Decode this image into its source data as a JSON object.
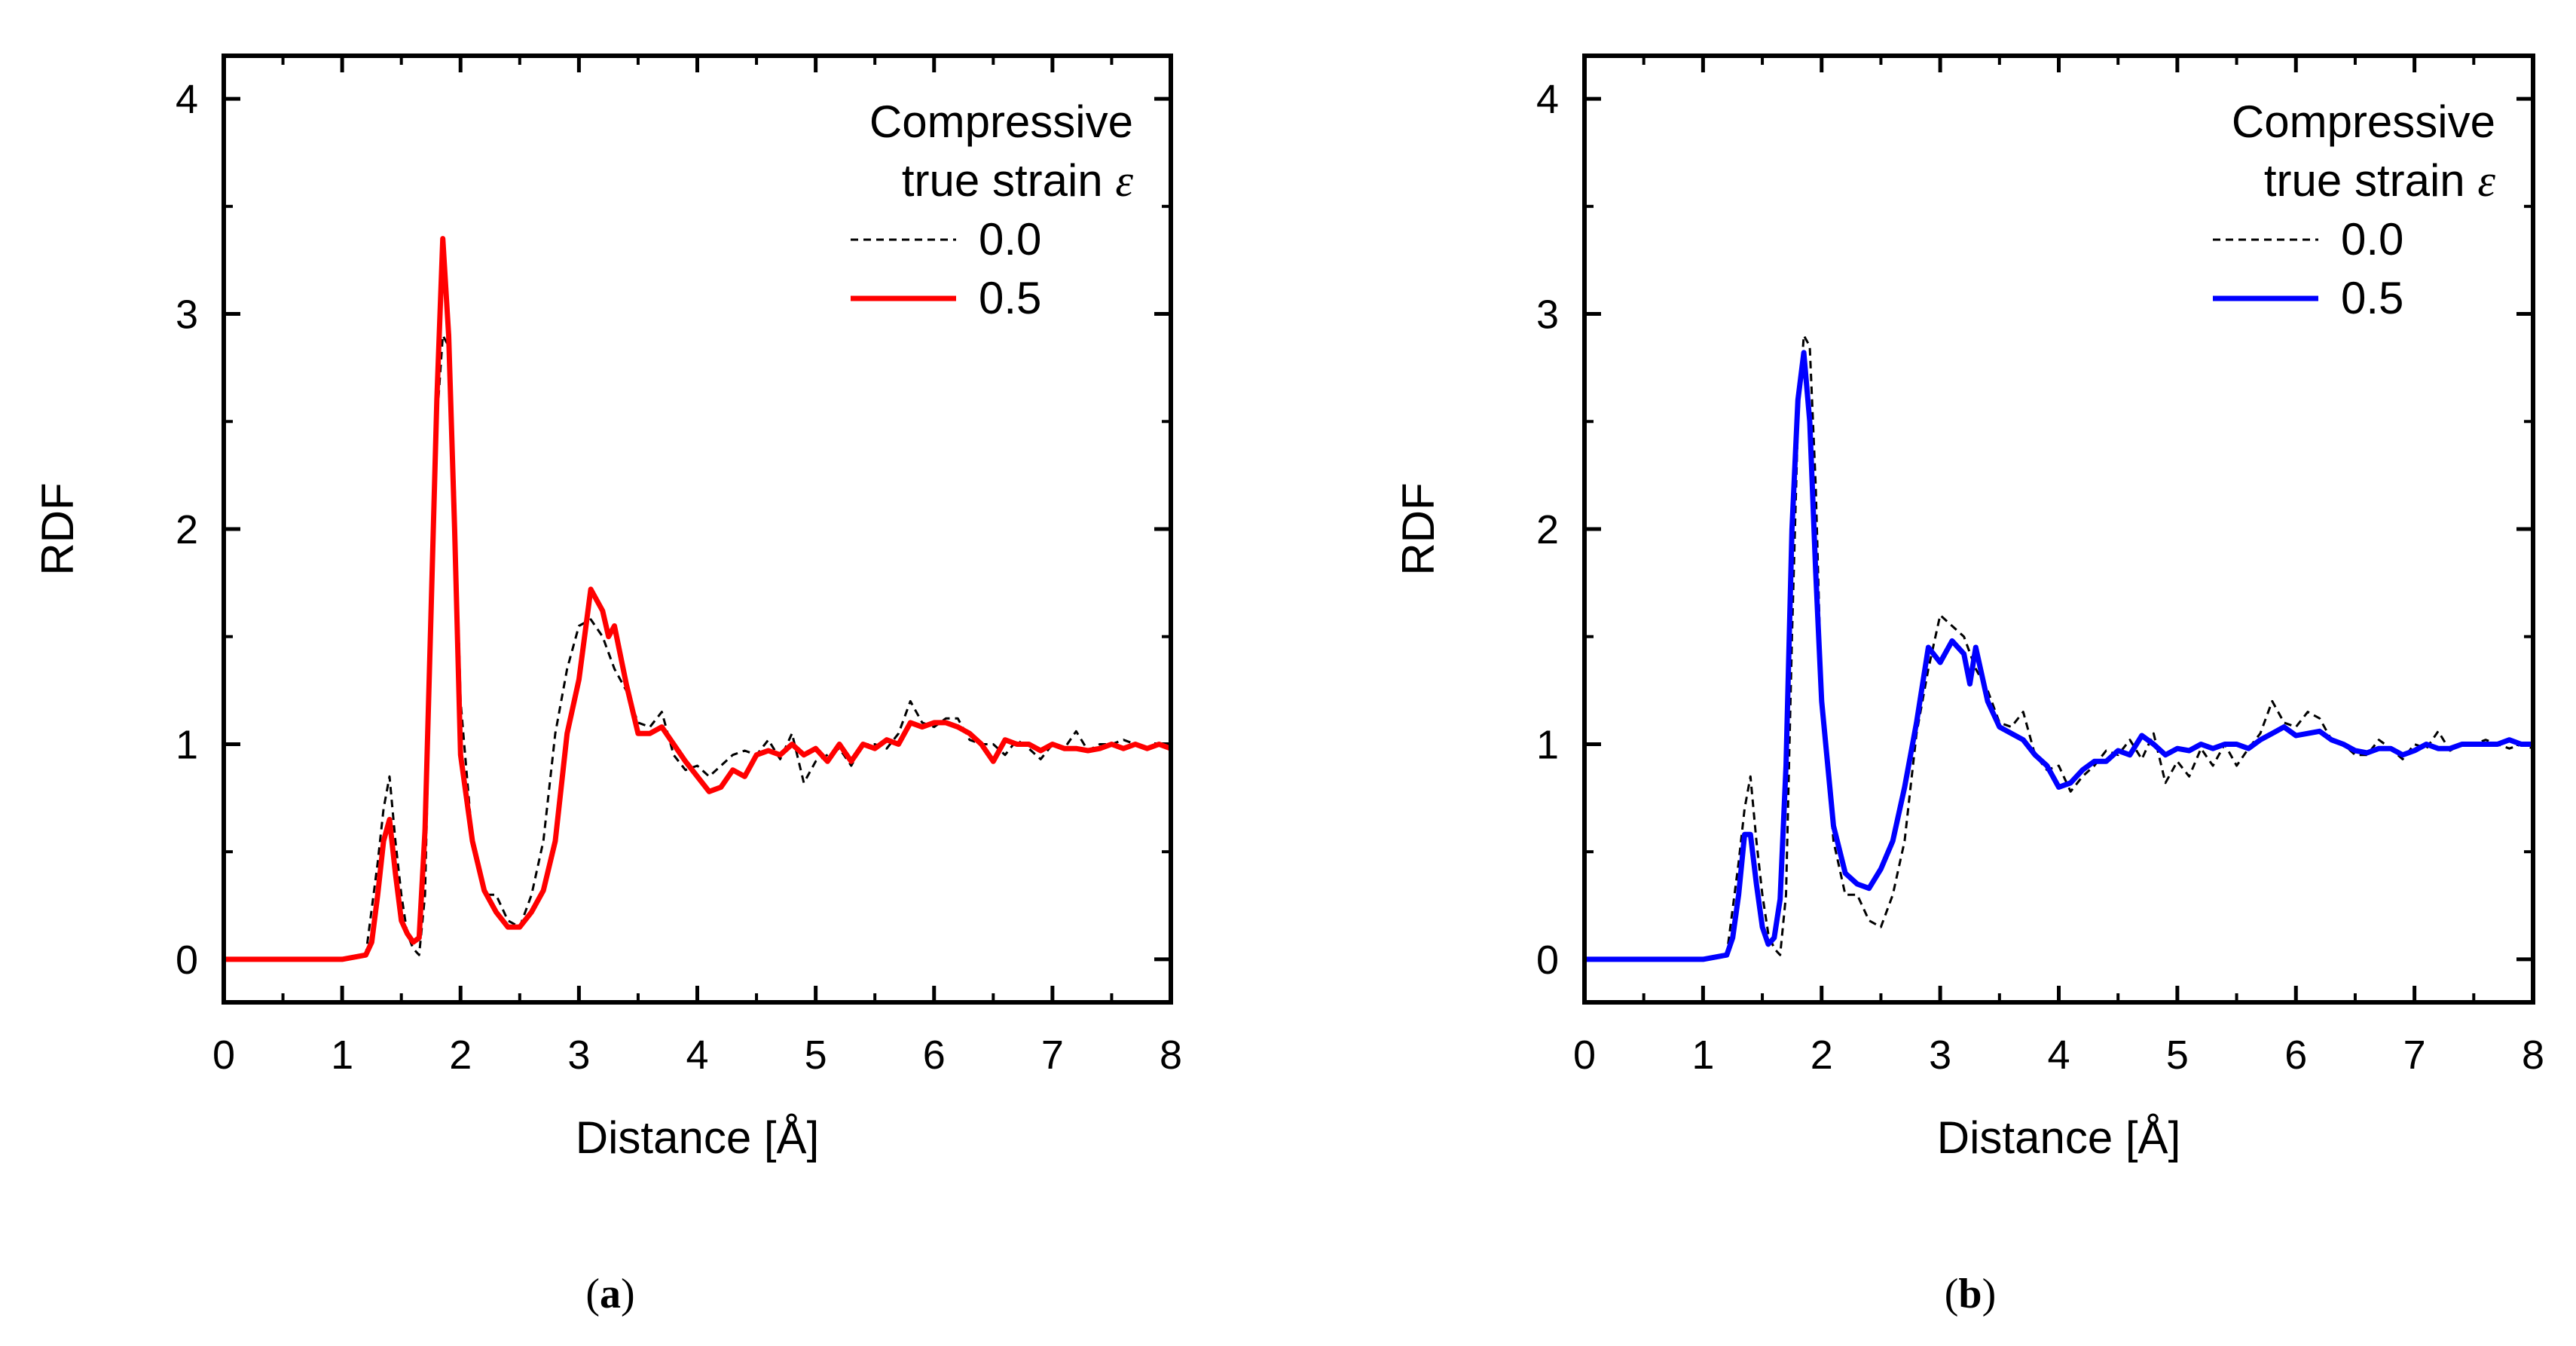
{
  "chart_data": [
    {
      "type": "line",
      "panel_caption": "a",
      "xlabel": "Distance [Å]",
      "ylabel": "RDF",
      "xlim": [
        0,
        8
      ],
      "ylim": [
        -0.2,
        4.2
      ],
      "xticks": [
        0,
        1,
        2,
        3,
        4,
        5,
        6,
        7,
        8
      ],
      "yticks": [
        0,
        1,
        2,
        3,
        4
      ],
      "legend": {
        "title_line1": "Compressive",
        "title_line2": "true strain",
        "title_symbol": "ε",
        "position": "top-right"
      },
      "series": [
        {
          "name": "0.0",
          "color": "#000000",
          "style": "dashed",
          "x": [
            0,
            0.2,
            1.0,
            1.2,
            1.3,
            1.35,
            1.4,
            1.45,
            1.5,
            1.55,
            1.6,
            1.65,
            1.7,
            1.75,
            1.8,
            1.85,
            1.9,
            1.95,
            2.0,
            2.1,
            2.2,
            2.3,
            2.4,
            2.5,
            2.6,
            2.7,
            2.8,
            2.9,
            3.0,
            3.1,
            3.2,
            3.3,
            3.4,
            3.5,
            3.6,
            3.7,
            3.8,
            3.9,
            4.0,
            4.1,
            4.2,
            4.3,
            4.4,
            4.5,
            4.6,
            4.7,
            4.8,
            4.9,
            5.0,
            5.1,
            5.2,
            5.3,
            5.4,
            5.5,
            5.6,
            5.7,
            5.8,
            5.9,
            6.0,
            6.1,
            6.2,
            6.3,
            6.4,
            6.5,
            6.6,
            6.7,
            6.8,
            6.9,
            7.0,
            7.1,
            7.2,
            7.3,
            7.4,
            7.5,
            7.6,
            7.7,
            7.8,
            7.9,
            8.0
          ],
          "y": [
            0,
            0,
            0,
            0.02,
            0.45,
            0.7,
            0.85,
            0.55,
            0.3,
            0.12,
            0.05,
            0.02,
            0.3,
            1.5,
            2.5,
            2.9,
            2.85,
            2.2,
            1.2,
            0.55,
            0.3,
            0.3,
            0.18,
            0.15,
            0.3,
            0.55,
            1.05,
            1.35,
            1.55,
            1.58,
            1.5,
            1.35,
            1.25,
            1.1,
            1.08,
            1.15,
            0.95,
            0.88,
            0.9,
            0.85,
            0.9,
            0.95,
            0.97,
            0.95,
            1.02,
            0.93,
            1.05,
            0.82,
            0.92,
            0.95,
            0.98,
            0.9,
            1.0,
            1.0,
            0.98,
            1.05,
            1.2,
            1.1,
            1.08,
            1.12,
            1.12,
            1.02,
            1.0,
            1.0,
            0.95,
            1.02,
            0.98,
            0.93,
            1.0,
            0.98,
            1.06,
            0.97,
            1.0,
            1.0,
            1.02,
            1.0,
            0.98,
            1.0,
            0.98
          ]
        },
        {
          "name": "0.5",
          "color": "#ff0000",
          "style": "solid",
          "x": [
            0,
            0.2,
            1.0,
            1.2,
            1.25,
            1.3,
            1.35,
            1.4,
            1.45,
            1.5,
            1.55,
            1.6,
            1.65,
            1.7,
            1.75,
            1.8,
            1.85,
            1.9,
            1.95,
            2.0,
            2.1,
            2.2,
            2.3,
            2.4,
            2.5,
            2.6,
            2.7,
            2.8,
            2.9,
            3.0,
            3.1,
            3.2,
            3.25,
            3.3,
            3.4,
            3.5,
            3.6,
            3.7,
            3.8,
            3.9,
            4.0,
            4.1,
            4.2,
            4.3,
            4.4,
            4.5,
            4.6,
            4.7,
            4.8,
            4.9,
            5.0,
            5.1,
            5.2,
            5.3,
            5.4,
            5.5,
            5.6,
            5.7,
            5.8,
            5.9,
            6.0,
            6.1,
            6.2,
            6.3,
            6.4,
            6.5,
            6.6,
            6.7,
            6.8,
            6.9,
            7.0,
            7.1,
            7.2,
            7.3,
            7.4,
            7.5,
            7.6,
            7.7,
            7.8,
            7.9,
            8.0
          ],
          "y": [
            0,
            0,
            0,
            0.02,
            0.08,
            0.3,
            0.55,
            0.65,
            0.4,
            0.18,
            0.12,
            0.08,
            0.1,
            0.6,
            1.6,
            2.6,
            3.35,
            2.9,
            2.0,
            0.95,
            0.55,
            0.32,
            0.22,
            0.15,
            0.15,
            0.22,
            0.32,
            0.55,
            1.05,
            1.3,
            1.72,
            1.62,
            1.5,
            1.55,
            1.28,
            1.05,
            1.05,
            1.08,
            1.0,
            0.92,
            0.85,
            0.78,
            0.8,
            0.88,
            0.85,
            0.95,
            0.97,
            0.95,
            1.0,
            0.95,
            0.98,
            0.92,
            1.0,
            0.92,
            1.0,
            0.98,
            1.02,
            1.0,
            1.1,
            1.08,
            1.1,
            1.1,
            1.08,
            1.05,
            1.0,
            0.92,
            1.02,
            1.0,
            1.0,
            0.97,
            1.0,
            0.98,
            0.98,
            0.97,
            0.98,
            1.0,
            0.98,
            1.0,
            0.98,
            1.0,
            0.98
          ]
        }
      ]
    },
    {
      "type": "line",
      "panel_caption": "b",
      "xlabel": "Distance [Å]",
      "ylabel": "RDF",
      "xlim": [
        0,
        8
      ],
      "ylim": [
        -0.2,
        4.2
      ],
      "xticks": [
        0,
        1,
        2,
        3,
        4,
        5,
        6,
        7,
        8
      ],
      "yticks": [
        0,
        1,
        2,
        3,
        4
      ],
      "legend": {
        "title_line1": "Compressive",
        "title_line2": "true strain",
        "title_symbol": "ε",
        "position": "top-right"
      },
      "series": [
        {
          "name": "0.0",
          "color": "#000000",
          "style": "dashed",
          "x": [
            0,
            0.2,
            1.0,
            1.2,
            1.3,
            1.35,
            1.4,
            1.45,
            1.5,
            1.55,
            1.6,
            1.65,
            1.7,
            1.75,
            1.8,
            1.85,
            1.9,
            1.95,
            2.0,
            2.1,
            2.2,
            2.3,
            2.4,
            2.5,
            2.6,
            2.7,
            2.8,
            2.9,
            3.0,
            3.1,
            3.2,
            3.3,
            3.4,
            3.5,
            3.6,
            3.7,
            3.8,
            3.9,
            4.0,
            4.1,
            4.2,
            4.3,
            4.4,
            4.5,
            4.6,
            4.7,
            4.8,
            4.9,
            5.0,
            5.1,
            5.2,
            5.3,
            5.4,
            5.5,
            5.6,
            5.7,
            5.8,
            5.9,
            6.0,
            6.1,
            6.2,
            6.3,
            6.4,
            6.5,
            6.6,
            6.7,
            6.8,
            6.9,
            7.0,
            7.1,
            7.2,
            7.3,
            7.4,
            7.5,
            7.6,
            7.7,
            7.8,
            7.9,
            8.0
          ],
          "y": [
            0,
            0,
            0,
            0.02,
            0.45,
            0.7,
            0.85,
            0.55,
            0.3,
            0.12,
            0.05,
            0.02,
            0.3,
            1.5,
            2.5,
            2.9,
            2.85,
            2.2,
            1.2,
            0.55,
            0.3,
            0.3,
            0.18,
            0.15,
            0.3,
            0.55,
            1.05,
            1.35,
            1.6,
            1.55,
            1.5,
            1.35,
            1.25,
            1.1,
            1.08,
            1.15,
            0.95,
            0.88,
            0.9,
            0.78,
            0.85,
            0.9,
            0.97,
            0.95,
            1.02,
            0.93,
            1.05,
            0.82,
            0.92,
            0.85,
            0.98,
            0.9,
            1.0,
            0.9,
            0.98,
            1.05,
            1.2,
            1.1,
            1.08,
            1.15,
            1.12,
            1.02,
            1.0,
            0.95,
            0.95,
            1.02,
            0.98,
            0.93,
            1.0,
            0.98,
            1.06,
            0.97,
            1.0,
            1.0,
            1.02,
            1.0,
            0.98,
            1.0,
            0.98
          ]
        },
        {
          "name": "0.5",
          "color": "#0000ff",
          "style": "solid",
          "x": [
            0,
            0.2,
            1.0,
            1.2,
            1.25,
            1.3,
            1.35,
            1.4,
            1.45,
            1.5,
            1.55,
            1.6,
            1.65,
            1.7,
            1.75,
            1.8,
            1.85,
            1.9,
            1.95,
            2.0,
            2.1,
            2.2,
            2.3,
            2.4,
            2.5,
            2.6,
            2.7,
            2.8,
            2.9,
            3.0,
            3.1,
            3.2,
            3.25,
            3.3,
            3.4,
            3.5,
            3.6,
            3.7,
            3.8,
            3.9,
            4.0,
            4.1,
            4.2,
            4.3,
            4.4,
            4.5,
            4.6,
            4.7,
            4.8,
            4.9,
            5.0,
            5.1,
            5.2,
            5.3,
            5.4,
            5.5,
            5.6,
            5.7,
            5.8,
            5.9,
            6.0,
            6.1,
            6.2,
            6.3,
            6.4,
            6.5,
            6.6,
            6.7,
            6.8,
            6.9,
            7.0,
            7.1,
            7.2,
            7.3,
            7.4,
            7.5,
            7.6,
            7.7,
            7.8,
            7.9,
            8.0
          ],
          "y": [
            0,
            0,
            0,
            0.02,
            0.1,
            0.3,
            0.58,
            0.58,
            0.35,
            0.15,
            0.07,
            0.1,
            0.28,
            0.9,
            2.0,
            2.6,
            2.82,
            2.5,
            1.8,
            1.2,
            0.62,
            0.4,
            0.35,
            0.33,
            0.42,
            0.55,
            0.8,
            1.1,
            1.45,
            1.38,
            1.48,
            1.42,
            1.28,
            1.45,
            1.2,
            1.08,
            1.05,
            1.02,
            0.95,
            0.9,
            0.8,
            0.82,
            0.88,
            0.92,
            0.92,
            0.97,
            0.95,
            1.04,
            1.0,
            0.95,
            0.98,
            0.97,
            1.0,
            0.98,
            1.0,
            1.0,
            0.98,
            1.02,
            1.05,
            1.08,
            1.04,
            1.05,
            1.06,
            1.02,
            1.0,
            0.97,
            0.96,
            0.98,
            0.98,
            0.95,
            0.97,
            1.0,
            0.98,
            0.98,
            1.0,
            1.0,
            1.0,
            1.0,
            1.02,
            1.0,
            1.0
          ]
        }
      ]
    }
  ]
}
